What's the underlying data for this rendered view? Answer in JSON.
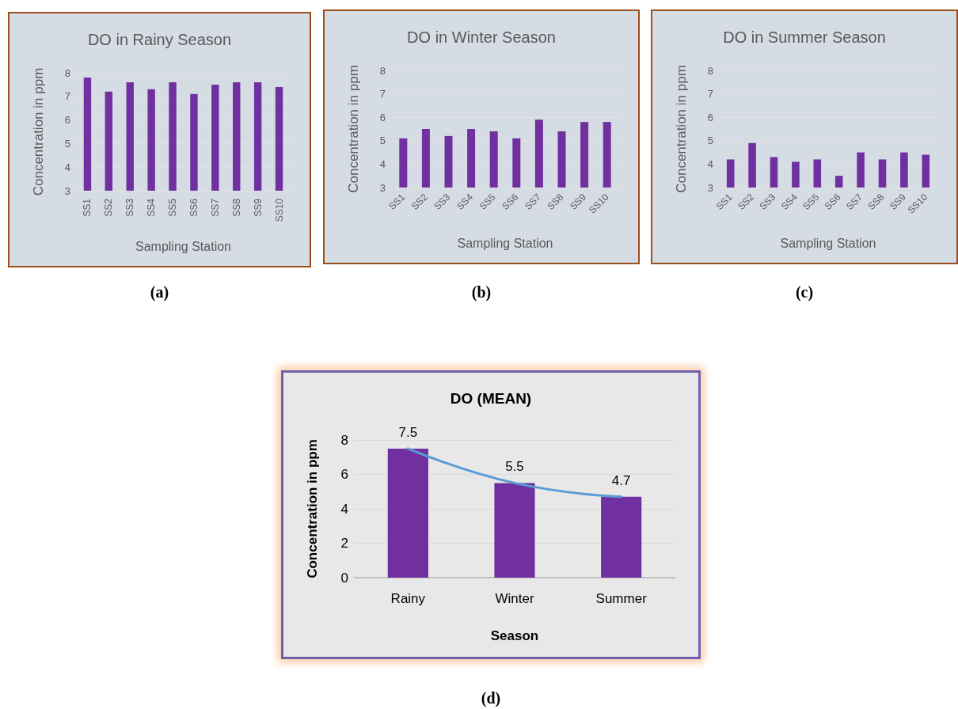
{
  "chart_data": [
    {
      "type": "bar",
      "title": "DO in Rainy Season",
      "xlabel": "Sampling Station",
      "ylabel": "Concentration in ppm",
      "categories": [
        "SS1",
        "SS2",
        "SS3",
        "SS4",
        "SS5",
        "SS6",
        "SS7",
        "SS8",
        "SS9",
        "SS10"
      ],
      "values": [
        7.8,
        7.2,
        7.6,
        7.3,
        7.6,
        7.1,
        7.5,
        7.6,
        7.6,
        7.4
      ],
      "color": "#7030a0",
      "ylim": [
        3,
        8
      ],
      "yticks": [
        3,
        4,
        5,
        6,
        7,
        8
      ],
      "grid": "y",
      "annotations": [
        "(a)"
      ]
    },
    {
      "type": "bar",
      "title": "DO in Winter Season",
      "xlabel": "Sampling Station",
      "ylabel": "Concentration in ppm",
      "categories": [
        "SS1",
        "SS2",
        "SS3",
        "SS4",
        "SS5",
        "SS6",
        "SS7",
        "SS8",
        "SS9",
        "SS10"
      ],
      "values": [
        5.1,
        5.5,
        5.2,
        5.5,
        5.4,
        5.1,
        5.9,
        5.4,
        5.8,
        5.8
      ],
      "color": "#7030a0",
      "ylim": [
        3,
        8
      ],
      "yticks": [
        3,
        4,
        5,
        6,
        7,
        8
      ],
      "grid": "y",
      "annotations": [
        "(b)"
      ]
    },
    {
      "type": "bar",
      "title": "DO in Summer Season",
      "xlabel": "Sampling Station",
      "ylabel": "Concentration in ppm",
      "categories": [
        "SS1",
        "SS2",
        "SS3",
        "SS4",
        "SS5",
        "SS6",
        "SS7",
        "SS8",
        "SS9",
        "SS10"
      ],
      "values": [
        4.2,
        4.9,
        4.3,
        4.1,
        4.2,
        3.5,
        4.5,
        4.2,
        4.5,
        4.4
      ],
      "color": "#7030a0",
      "ylim": [
        3,
        8
      ],
      "yticks": [
        3,
        4,
        5,
        6,
        7,
        8
      ],
      "grid": "y",
      "annotations": [
        "(c)"
      ]
    },
    {
      "type": "bar",
      "title": "DO (MEAN)",
      "xlabel": "Season",
      "ylabel": "Concentration in ppm",
      "categories": [
        "Rainy",
        "Winter",
        "Summer"
      ],
      "series": [
        {
          "color": "#7030a0",
          "values": [
            7.5,
            5.5,
            4.7
          ],
          "value_labels": [
            "7.5",
            "5.5",
            "4.7"
          ]
        },
        {
          "type": "line",
          "color": "#5b9bd5",
          "x": [
            "Rainy",
            "Winter",
            "Summer"
          ],
          "values": [
            7.5,
            5.5,
            4.7
          ],
          "marker": "none"
        }
      ],
      "ylim": [
        0,
        8
      ],
      "yticks": [
        0,
        2,
        4,
        6,
        8
      ],
      "grid": "y",
      "annotations": [
        "(d)"
      ]
    }
  ]
}
